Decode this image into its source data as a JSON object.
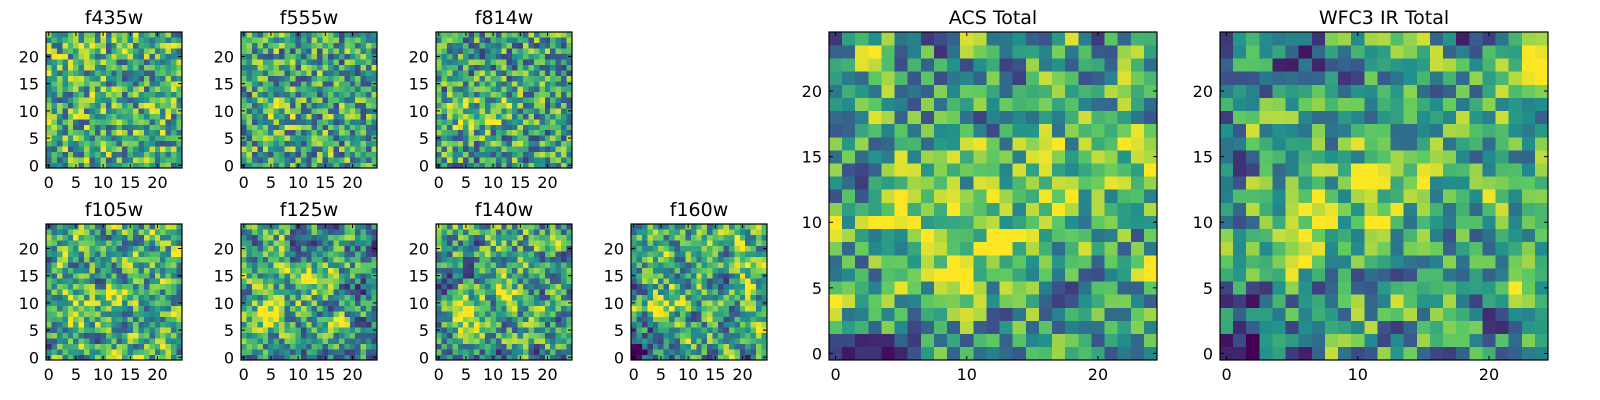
{
  "figure": {
    "colormap": "viridis",
    "colormap_stops": [
      "#440154",
      "#3b528b",
      "#21918c",
      "#5ec962",
      "#fde725"
    ]
  },
  "chart_data": [
    {
      "type": "heatmap",
      "title": "f435w",
      "grid_size": 25,
      "xlim": [
        0,
        24
      ],
      "ylim": [
        0,
        24
      ],
      "xticks": [
        0,
        5,
        10,
        15,
        20
      ],
      "yticks": [
        0,
        5,
        10,
        15,
        20
      ],
      "value_scale": [
        0,
        1
      ],
      "texture": "speckled",
      "seed": 11,
      "mean_level": 0.62,
      "blobs": []
    },
    {
      "type": "heatmap",
      "title": "f555w",
      "grid_size": 25,
      "xlim": [
        0,
        24
      ],
      "ylim": [
        0,
        24
      ],
      "xticks": [
        0,
        5,
        10,
        15,
        20
      ],
      "yticks": [
        0,
        5,
        10,
        15,
        20
      ],
      "value_scale": [
        0,
        1
      ],
      "texture": "speckled",
      "seed": 23,
      "mean_level": 0.58,
      "blobs": [
        {
          "x": 6,
          "y": 10,
          "strength": 0.25
        }
      ]
    },
    {
      "type": "heatmap",
      "title": "f814w",
      "grid_size": 25,
      "xlim": [
        0,
        24
      ],
      "ylim": [
        0,
        24
      ],
      "xticks": [
        0,
        5,
        10,
        15,
        20
      ],
      "yticks": [
        0,
        5,
        10,
        15,
        20
      ],
      "value_scale": [
        0,
        1
      ],
      "texture": "speckled",
      "seed": 37,
      "mean_level": 0.56,
      "blobs": [
        {
          "x": 5,
          "y": 9,
          "strength": 0.3
        },
        {
          "x": 12,
          "y": 10,
          "strength": 0.2
        }
      ]
    },
    {
      "type": "heatmap",
      "title": "f105w",
      "grid_size": 25,
      "xlim": [
        0,
        24
      ],
      "ylim": [
        0,
        24
      ],
      "xticks": [
        0,
        5,
        10,
        15,
        20
      ],
      "yticks": [
        0,
        5,
        10,
        15,
        20
      ],
      "value_scale": [
        0,
        1
      ],
      "texture": "smooth",
      "seed": 41,
      "mean_level": 0.6,
      "blobs": [
        {
          "x": 5,
          "y": 8,
          "strength": 0.3
        },
        {
          "x": 13,
          "y": 11,
          "strength": 0.25
        }
      ]
    },
    {
      "type": "heatmap",
      "title": "f125w",
      "grid_size": 25,
      "xlim": [
        0,
        24
      ],
      "ylim": [
        0,
        24
      ],
      "xticks": [
        0,
        5,
        10,
        15,
        20
      ],
      "yticks": [
        0,
        5,
        10,
        15,
        20
      ],
      "value_scale": [
        0,
        1
      ],
      "texture": "smooth",
      "seed": 53,
      "mean_level": 0.57,
      "blobs": [
        {
          "x": 5,
          "y": 8,
          "strength": 0.3
        },
        {
          "x": 13,
          "y": 14,
          "strength": 0.25
        }
      ]
    },
    {
      "type": "heatmap",
      "title": "f140w",
      "grid_size": 25,
      "xlim": [
        0,
        24
      ],
      "ylim": [
        0,
        24
      ],
      "xticks": [
        0,
        5,
        10,
        15,
        20
      ],
      "yticks": [
        0,
        5,
        10,
        15,
        20
      ],
      "value_scale": [
        0,
        1
      ],
      "texture": "smooth",
      "seed": 67,
      "mean_level": 0.58,
      "blobs": [
        {
          "x": 5,
          "y": 9,
          "strength": 0.3
        },
        {
          "x": 12,
          "y": 13,
          "strength": 0.25
        }
      ]
    },
    {
      "type": "heatmap",
      "title": "f160w",
      "grid_size": 25,
      "xlim": [
        0,
        24
      ],
      "ylim": [
        0,
        24
      ],
      "xticks": [
        0,
        5,
        10,
        15,
        20
      ],
      "yticks": [
        0,
        5,
        10,
        15,
        20
      ],
      "value_scale": [
        0,
        1
      ],
      "texture": "smooth",
      "seed": 79,
      "mean_level": 0.6,
      "blobs": [
        {
          "x": 6,
          "y": 10,
          "strength": 0.35
        },
        {
          "x": 21,
          "y": 18,
          "strength": 0.2
        },
        {
          "x": 1,
          "y": 1,
          "strength": -0.5
        }
      ]
    },
    {
      "type": "heatmap",
      "title": "ACS Total",
      "grid_size": 25,
      "xlim": [
        0,
        24
      ],
      "ylim": [
        0,
        24
      ],
      "xticks": [
        0,
        10,
        20
      ],
      "yticks": [
        0,
        5,
        10,
        15,
        20
      ],
      "value_scale": [
        0,
        1
      ],
      "texture": "blocky",
      "seed": 97,
      "mean_level": 0.58,
      "blobs": [
        {
          "x": 6,
          "y": 10,
          "strength": 0.35
        },
        {
          "x": 12,
          "y": 10,
          "strength": 0.25
        },
        {
          "x": 16,
          "y": 15,
          "strength": 0.2
        }
      ]
    },
    {
      "type": "heatmap",
      "title": "WFC3 IR Total",
      "grid_size": 25,
      "xlim": [
        0,
        24
      ],
      "ylim": [
        0,
        24
      ],
      "xticks": [
        0,
        10,
        20
      ],
      "yticks": [
        0,
        5,
        10,
        15,
        20
      ],
      "value_scale": [
        0,
        1
      ],
      "texture": "blocky",
      "seed": 113,
      "mean_level": 0.57,
      "blobs": [
        {
          "x": 6,
          "y": 10,
          "strength": 0.4
        },
        {
          "x": 12,
          "y": 13,
          "strength": 0.3
        },
        {
          "x": 23,
          "y": 20,
          "strength": 0.3
        },
        {
          "x": 2,
          "y": 1,
          "strength": -0.5
        },
        {
          "x": 4,
          "y": 24,
          "strength": -0.4
        }
      ]
    }
  ]
}
